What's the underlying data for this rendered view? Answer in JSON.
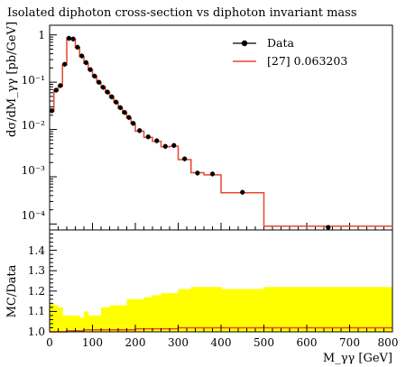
{
  "title": "Isolated diphoton cross-section vs diphoton invariant mass",
  "colors": {
    "data": "#000000",
    "mc_line": "#e8462e",
    "band": "#ffff00"
  },
  "chart_data": [
    {
      "type": "line",
      "title": "Isolated diphoton cross-section vs diphoton invariant mass",
      "ylabel": "dσ/dM_γγ [pb/GeV]",
      "yscale": "log",
      "ylim": [
        7.5e-05,
        1.6
      ],
      "xlim": [
        0,
        800
      ],
      "ytick_labels": [
        "10⁻⁴",
        "10⁻³",
        "10⁻²",
        "10⁻¹",
        "1"
      ],
      "legend_position": "top-right",
      "legend": [
        "Data",
        "[27] 0.063203"
      ],
      "bin_edges": [
        0,
        10,
        20,
        30,
        40,
        50,
        60,
        70,
        80,
        90,
        100,
        110,
        120,
        130,
        140,
        150,
        160,
        170,
        180,
        190,
        200,
        220,
        240,
        260,
        280,
        300,
        330,
        360,
        400,
        500,
        800
      ],
      "series": [
        {
          "name": "Data",
          "style": "markers-with-errorbars",
          "x": [
            5,
            15,
            25,
            35,
            45,
            55,
            65,
            75,
            85,
            95,
            105,
            115,
            125,
            135,
            145,
            155,
            165,
            175,
            185,
            195,
            210,
            230,
            250,
            270,
            290,
            315,
            345,
            380,
            450,
            650
          ],
          "y": [
            0.025,
            0.068,
            0.085,
            0.24,
            0.85,
            0.82,
            0.55,
            0.36,
            0.26,
            0.185,
            0.135,
            0.1,
            0.078,
            0.062,
            0.049,
            0.038,
            0.029,
            0.023,
            0.018,
            0.0135,
            0.0095,
            0.007,
            0.0058,
            0.0044,
            0.0046,
            0.0024,
            0.0012,
            0.00115,
            0.00047,
            8.5e-05
          ]
        },
        {
          "name": "[27] 0.063203",
          "style": "step",
          "y": [
            0.024,
            0.065,
            0.082,
            0.23,
            0.86,
            0.8,
            0.54,
            0.35,
            0.25,
            0.18,
            0.132,
            0.098,
            0.076,
            0.06,
            0.047,
            0.037,
            0.028,
            0.022,
            0.0175,
            0.0132,
            0.0092,
            0.0068,
            0.0056,
            0.0043,
            0.0044,
            0.0023,
            0.00122,
            0.0011,
            0.00046,
            9e-05
          ]
        }
      ]
    },
    {
      "type": "area",
      "ylabel": "MC/Data",
      "xlabel": "M_γγ [GeV]",
      "xlim": [
        0,
        800
      ],
      "ylim": [
        1.0,
        1.5
      ],
      "xtick_labels": [
        "0",
        "100",
        "200",
        "300",
        "400",
        "500",
        "600",
        "700",
        "800"
      ],
      "ytick_labels": [
        "1.0",
        "1.1",
        "1.2",
        "1.3",
        "1.4"
      ],
      "bin_edges": [
        0,
        10,
        20,
        30,
        40,
        50,
        60,
        70,
        80,
        90,
        100,
        110,
        120,
        130,
        140,
        150,
        160,
        170,
        180,
        190,
        200,
        220,
        240,
        260,
        280,
        300,
        330,
        360,
        400,
        500,
        800
      ],
      "series": [
        {
          "name": "[27] 0.063203",
          "style": "band",
          "low": [
            1,
            1,
            1,
            1,
            1,
            1,
            1,
            1,
            1,
            1,
            1,
            1,
            1,
            1,
            1,
            1,
            1,
            1,
            1,
            1,
            1,
            1,
            1,
            1,
            1,
            1,
            1,
            1,
            1,
            1
          ],
          "high": [
            1.14,
            1.13,
            1.12,
            1.08,
            1.08,
            1.08,
            1.08,
            1.07,
            1.1,
            1.08,
            1.08,
            1.08,
            1.12,
            1.12,
            1.13,
            1.13,
            1.13,
            1.13,
            1.16,
            1.16,
            1.16,
            1.17,
            1.18,
            1.19,
            1.19,
            1.21,
            1.22,
            1.22,
            1.21,
            1.22
          ]
        },
        {
          "name": "[27] 0.063203",
          "style": "step",
          "y": [
            1.0,
            1.0,
            1.0,
            1.0,
            1.005,
            1.005,
            1.005,
            1.005,
            1.01,
            1.01,
            1.01,
            1.01,
            1.01,
            1.01,
            1.01,
            1.01,
            1.01,
            1.01,
            1.01,
            1.01,
            1.015,
            1.015,
            1.015,
            1.015,
            1.015,
            1.02,
            1.02,
            1.02,
            1.02,
            1.02
          ]
        }
      ]
    }
  ]
}
